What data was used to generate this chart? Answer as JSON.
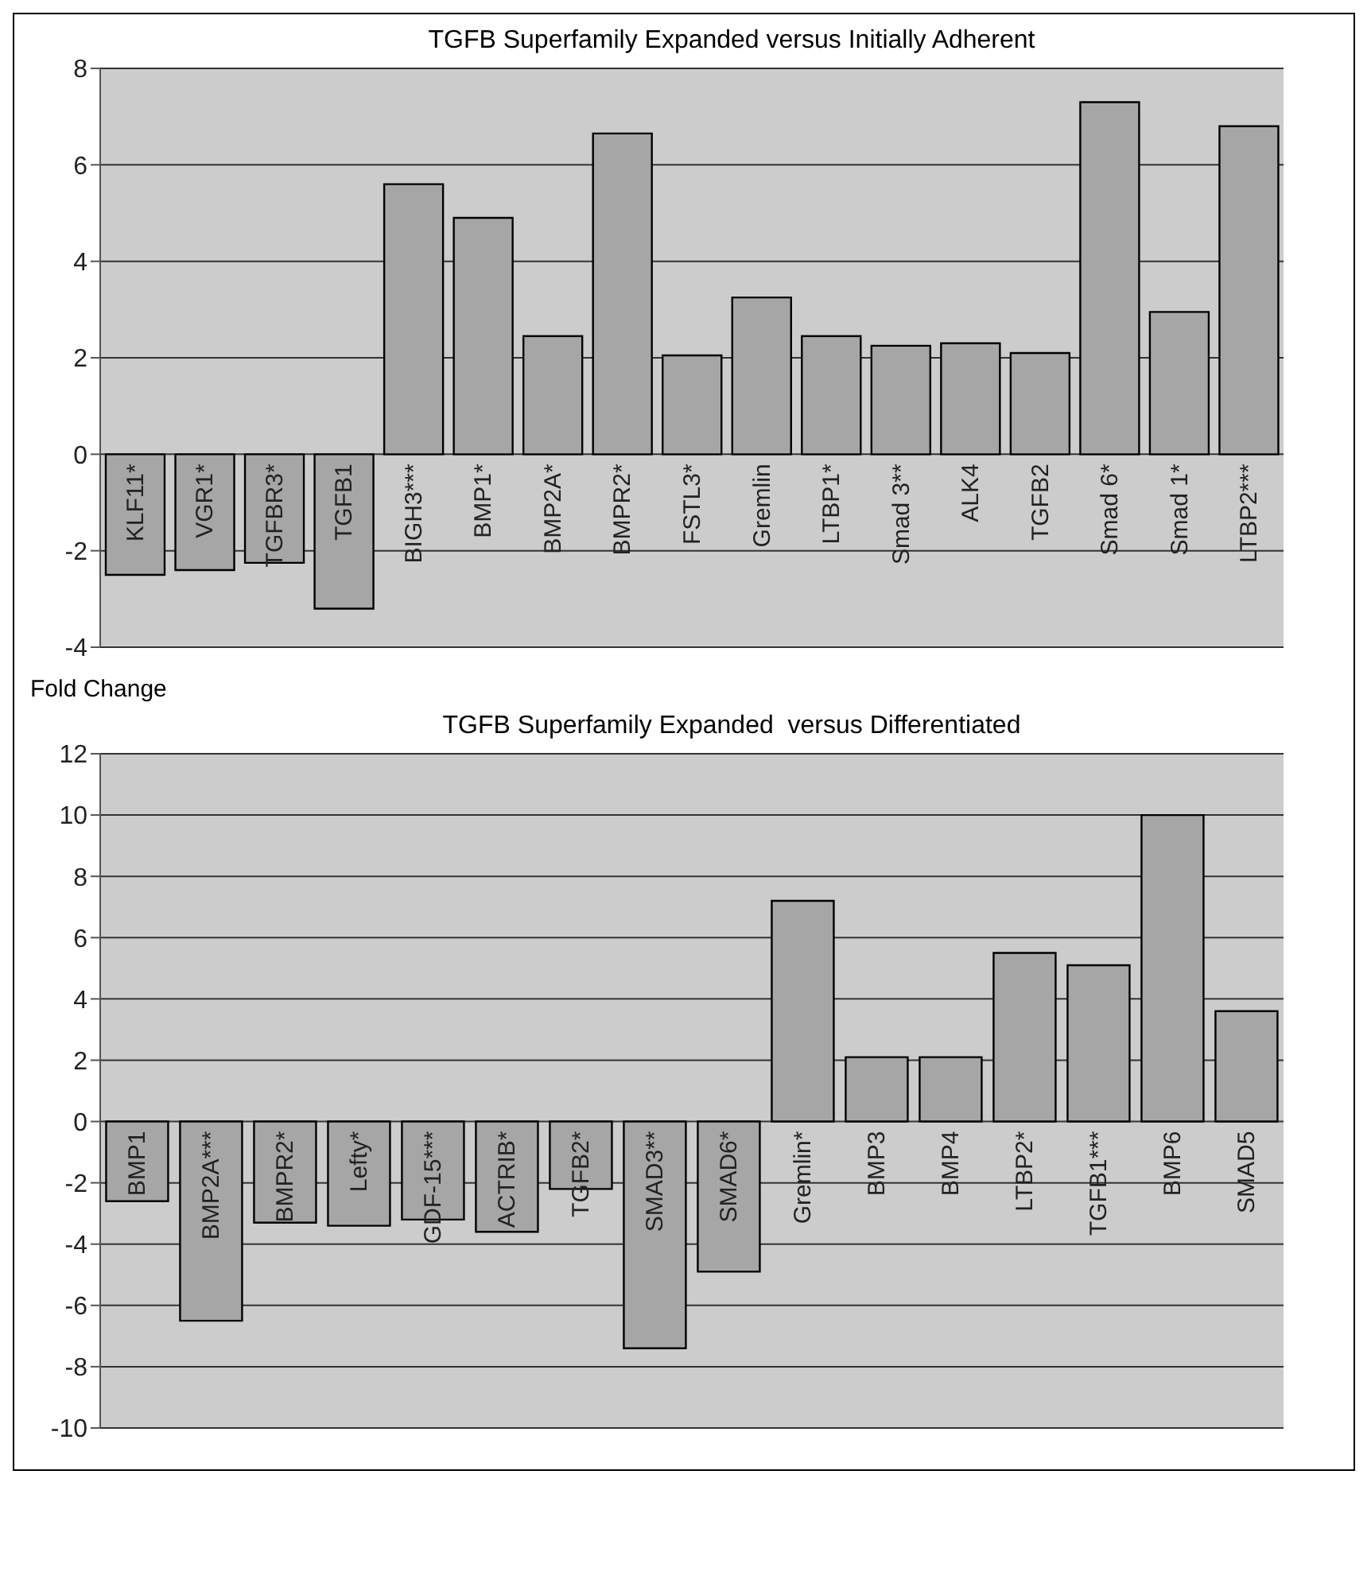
{
  "chart_data": [
    {
      "type": "bar",
      "title": "TGFB Superfamily Expanded versus Initially Adherent",
      "categories": [
        "KLF11*",
        "VGR1*",
        "TGFBR3*",
        "TGFB1",
        "BIGH3***",
        "BMP1*",
        "BMP2A*",
        "BMPR2*",
        "FSTL3*",
        "Gremlin",
        "LTBP1*",
        "Smad 3**",
        "ALK4",
        "TGFB2",
        "Smad 6*",
        "Smad 1*",
        "LTBP2***"
      ],
      "values": [
        -2.5,
        -2.4,
        -2.25,
        -3.2,
        5.6,
        4.9,
        2.45,
        6.65,
        2.05,
        3.25,
        2.45,
        2.25,
        2.3,
        2.1,
        7.3,
        2.95,
        6.8
      ],
      "color": "#a6a6a6",
      "ylim": [
        -4,
        8
      ],
      "yticks": [
        -4,
        -2,
        0,
        2,
        4,
        6,
        8
      ],
      "grid": "y"
    },
    {
      "type": "bar",
      "title": "TGFB Superfamily Expanded  versus Differentiated",
      "ylabel": "Fold Change",
      "categories": [
        "BMP1",
        "BMP2A***",
        "BMPR2*",
        "Lefty*",
        "GDF-15***",
        "ACTRIB*",
        "TGFB2*",
        "SMAD3**",
        "SMAD6*",
        "Gremlin*",
        "BMP3",
        "BMP4",
        "LTBP2*",
        "TGFB1***",
        "BMP6",
        "SMAD5"
      ],
      "values": [
        -2.6,
        -6.5,
        -3.3,
        -3.4,
        -3.2,
        -3.6,
        -2.2,
        -7.4,
        -4.9,
        7.2,
        2.1,
        2.1,
        5.5,
        5.1,
        10,
        3.6
      ],
      "color": "#a6a6a6",
      "ylim": [
        -10,
        12
      ],
      "yticks": [
        -10,
        -8,
        -6,
        -4,
        -2,
        0,
        2,
        4,
        6,
        8,
        10,
        12
      ],
      "grid": "y"
    }
  ]
}
